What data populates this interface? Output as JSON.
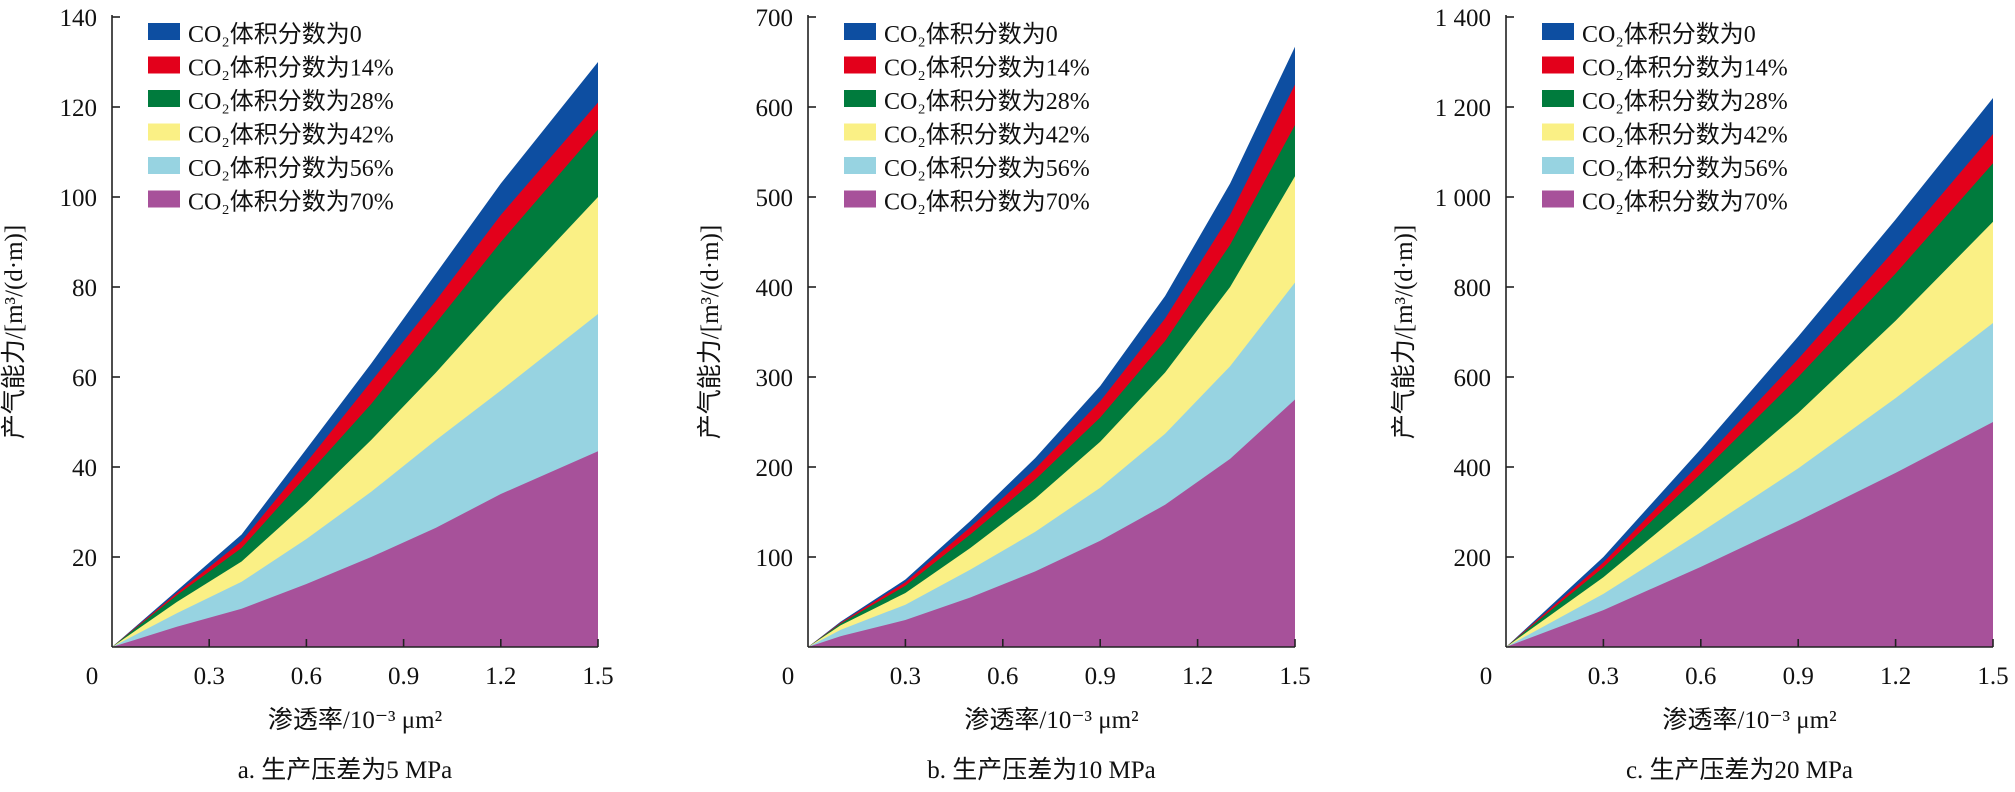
{
  "chart_data": [
    {
      "type": "area",
      "panel": "a",
      "caption": "a. 生产压差为5 MPa",
      "xlabel": "渗透率/10⁻³ μm²",
      "ylabel": "产气能力/[m³/(d·m)]",
      "x": [
        0,
        0.2,
        0.4,
        0.6,
        0.8,
        1.0,
        1.2,
        1.5
      ],
      "xlim": [
        0,
        1.5
      ],
      "ylim": [
        0,
        140
      ],
      "x_ticks": [
        "0",
        "0.3",
        "0.6",
        "0.9",
        "1.2",
        "1.5"
      ],
      "y_ticks": [
        "20",
        "40",
        "60",
        "80",
        "100",
        "120",
        "140"
      ],
      "legend_position": "top-left",
      "grid": false,
      "series": [
        {
          "name": "CO₂体积分数为0",
          "color": "#0d4ea1",
          "values": [
            0,
            12.5,
            25,
            44,
            63,
            83,
            103,
            130
          ]
        },
        {
          "name": "CO₂体积分数为14%",
          "color": "#e3001b",
          "values": [
            0,
            12,
            23.5,
            41,
            59,
            77,
            96,
            121
          ]
        },
        {
          "name": "CO₂体积分数为28%",
          "color": "#007b3d",
          "values": [
            0,
            11.5,
            22,
            38,
            54,
            72,
            90,
            115
          ]
        },
        {
          "name": "CO₂体积分数为42%",
          "color": "#faf085",
          "values": [
            0,
            10,
            19,
            32,
            46,
            61,
            77,
            100
          ]
        },
        {
          "name": "CO₂体积分数为56%",
          "color": "#97d3e1",
          "values": [
            0,
            7.5,
            14.5,
            24,
            34.5,
            46,
            57,
            74
          ]
        },
        {
          "name": "CO₂体积分数为70%",
          "color": "#a7519a",
          "values": [
            0,
            4.5,
            8.5,
            14,
            20,
            26.5,
            34,
            43.5
          ]
        }
      ]
    },
    {
      "type": "area",
      "panel": "b",
      "caption": "b. 生产压差为10 MPa",
      "xlabel": "渗透率/10⁻³ μm²",
      "ylabel": "产气能力/[m³/(d·m)]",
      "x": [
        0,
        0.1,
        0.3,
        0.5,
        0.7,
        0.9,
        1.1,
        1.3,
        1.5
      ],
      "xlim": [
        0,
        1.5
      ],
      "ylim": [
        0,
        700
      ],
      "x_ticks": [
        "0",
        "0.3",
        "0.6",
        "0.9",
        "1.2",
        "1.5"
      ],
      "y_ticks": [
        "100",
        "200",
        "300",
        "400",
        "500",
        "600",
        "700"
      ],
      "legend_position": "top-left",
      "grid": false,
      "series": [
        {
          "name": "CO₂体积分数为0",
          "color": "#0d4ea1",
          "values": [
            0,
            28,
            75,
            140,
            210,
            290,
            390,
            515,
            667
          ]
        },
        {
          "name": "CO₂体积分数为14%",
          "color": "#e3001b",
          "values": [
            0,
            27,
            72,
            133,
            198,
            273,
            365,
            480,
            625
          ]
        },
        {
          "name": "CO₂体积分数为28%",
          "color": "#007b3d",
          "values": [
            0,
            26,
            68,
            125,
            186,
            255,
            340,
            447,
            580
          ]
        },
        {
          "name": "CO₂体积分数为42%",
          "color": "#faf085",
          "values": [
            0,
            24,
            60,
            110,
            165,
            228,
            305,
            400,
            523
          ]
        },
        {
          "name": "CO₂体积分数为56%",
          "color": "#97d3e1",
          "values": [
            0,
            19,
            47,
            86,
            128,
            177,
            237,
            312,
            405
          ]
        },
        {
          "name": "CO₂体积分数为70%",
          "color": "#a7519a",
          "values": [
            0,
            12,
            30,
            55,
            84,
            118,
            158,
            209,
            275
          ]
        }
      ]
    },
    {
      "type": "area",
      "panel": "c",
      "caption": "c. 生产压差为20 MPa",
      "xlabel": "渗透率/10⁻³ μm²",
      "ylabel": "产气能力/[m³/(d·m)]",
      "x": [
        0,
        0.3,
        0.6,
        0.9,
        1.2,
        1.5
      ],
      "xlim": [
        0,
        1.5
      ],
      "ylim": [
        0,
        1400
      ],
      "x_ticks": [
        "0",
        "0.3",
        "0.6",
        "0.9",
        "1.2",
        "1.5"
      ],
      "y_ticks": [
        "200",
        "400",
        "600",
        "800",
        "1 000",
        "1 200",
        "1 400"
      ],
      "legend_position": "top-left",
      "grid": false,
      "series": [
        {
          "name": "CO₂体积分数为0",
          "color": "#0d4ea1",
          "values": [
            0,
            200,
            440,
            690,
            950,
            1220
          ]
        },
        {
          "name": "CO₂体积分数为14%",
          "color": "#e3001b",
          "values": [
            0,
            188,
            410,
            640,
            885,
            1140
          ]
        },
        {
          "name": "CO₂体积分数为28%",
          "color": "#007b3d",
          "values": [
            0,
            177,
            385,
            600,
            830,
            1075
          ]
        },
        {
          "name": "CO₂体积分数为42%",
          "color": "#faf085",
          "values": [
            0,
            155,
            335,
            520,
            725,
            945
          ]
        },
        {
          "name": "CO₂体积分数为56%",
          "color": "#97d3e1",
          "values": [
            0,
            118,
            255,
            397,
            553,
            720
          ]
        },
        {
          "name": "CO₂体积分数为70%",
          "color": "#a7519a",
          "values": [
            0,
            82,
            178,
            280,
            387,
            500
          ]
        }
      ]
    }
  ]
}
